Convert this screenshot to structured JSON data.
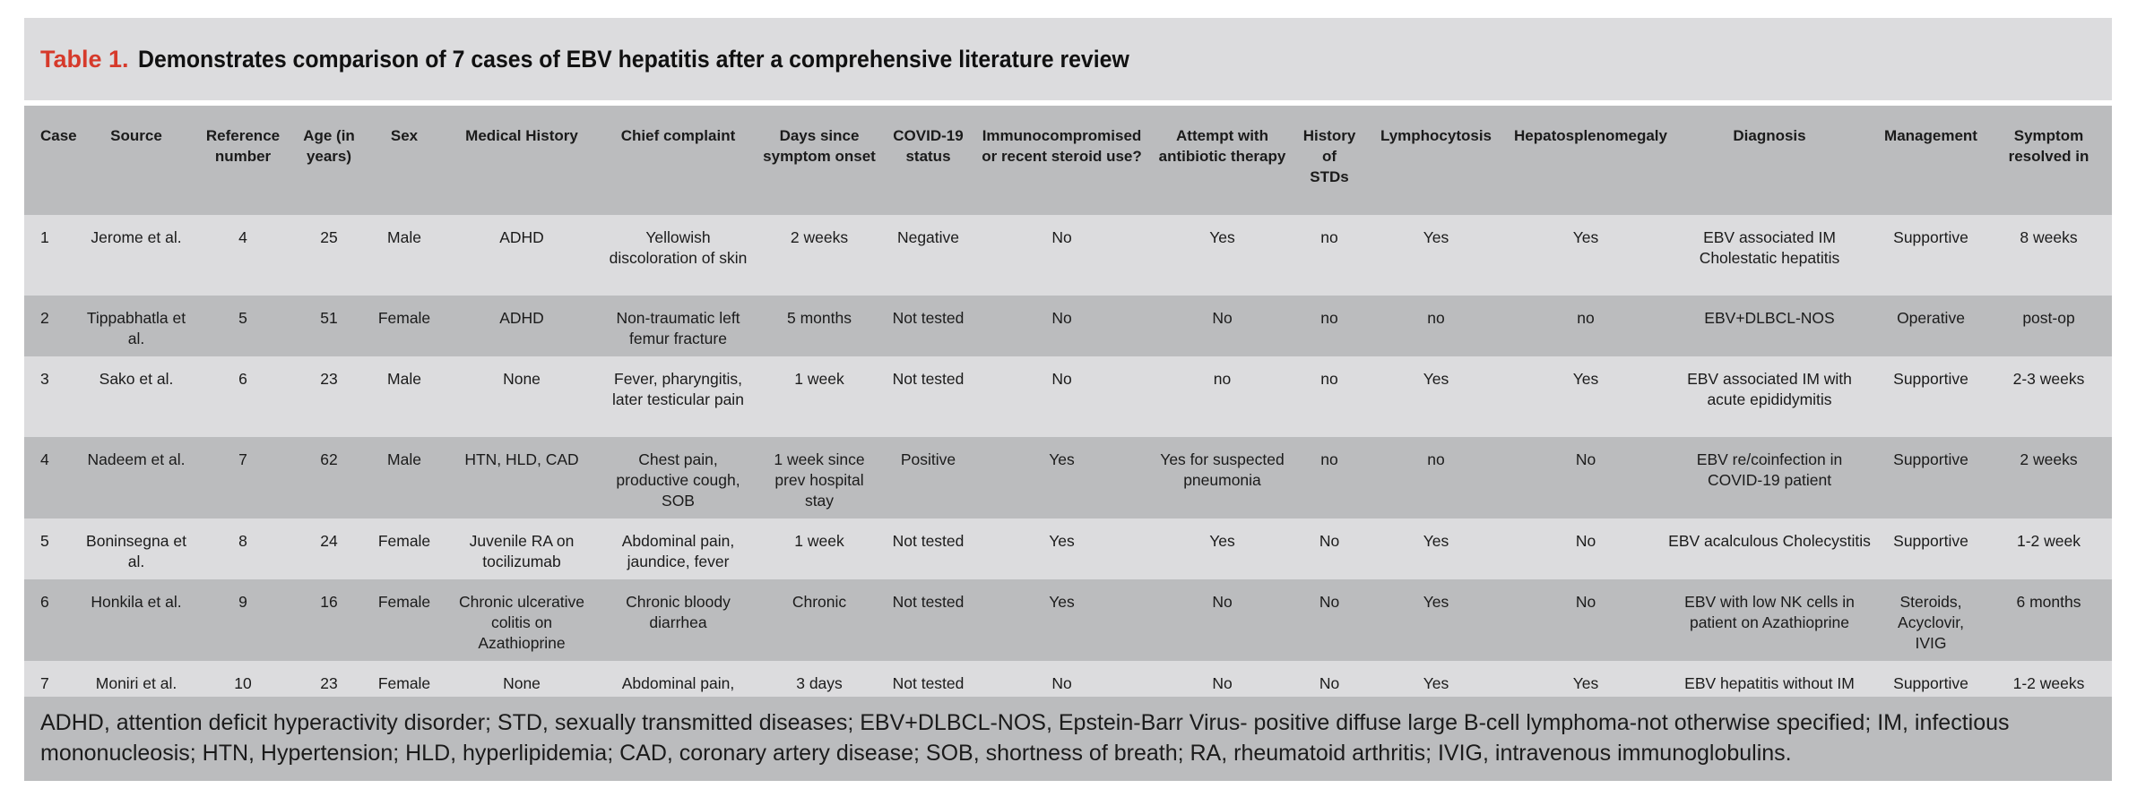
{
  "title": {
    "number": "Table 1.",
    "text": "Demonstrates comparison of 7 cases of EBV hepatitis after a comprehensive literature review"
  },
  "columns": [
    "Case",
    "Source",
    "Reference number",
    "Age (in years)",
    "Sex",
    "Medical History",
    "Chief complaint",
    "Days since symptom onset",
    "COVID-19 status",
    "Immunocompromised or recent steroid use?",
    "Attempt with antibiotic therapy",
    "History of STDs",
    "Lymphocytosis",
    "Hepatosplenomegaly",
    "Diagnosis",
    "Management",
    "Symptom resolved in"
  ],
  "rows": [
    [
      "1",
      "Jerome et al.",
      "4",
      "25",
      "Male",
      "ADHD",
      "Yellowish discoloration of skin",
      "2 weeks",
      "Negative",
      "No",
      "Yes",
      "no",
      "Yes",
      "Yes",
      "EBV associated IM Cholestatic hepatitis",
      "Supportive",
      "8 weeks"
    ],
    [
      "2",
      "Tippabhatla et al.",
      "5",
      "51",
      "Female",
      "ADHD",
      "Non-traumatic left femur fracture",
      "5 months",
      "Not tested",
      "No",
      "No",
      "no",
      "no",
      "no",
      "EBV+DLBCL-NOS",
      "Operative",
      "post-op"
    ],
    [
      "3",
      "Sako et al.",
      "6",
      "23",
      "Male",
      "None",
      "Fever, pharyngitis, later testicular pain",
      "1 week",
      "Not tested",
      "No",
      "no",
      "no",
      "Yes",
      "Yes",
      "EBV associated IM with acute epididymitis",
      "Supportive",
      "2-3 weeks"
    ],
    [
      "4",
      "Nadeem et al.",
      "7",
      "62",
      "Male",
      "HTN, HLD, CAD",
      "Chest pain, productive cough, SOB",
      "1 week since prev hospital stay",
      "Positive",
      "Yes",
      "Yes for suspected pneumonia",
      "no",
      "no",
      "No",
      "EBV re/coinfection in COVID-19 patient",
      "Supportive",
      "2 weeks"
    ],
    [
      "5",
      "Boninsegna et al.",
      "8",
      "24",
      "Female",
      "Juvenile RA on tocilizumab",
      "Abdominal pain, jaundice, fever",
      "1 week",
      "Not tested",
      "Yes",
      "Yes",
      "No",
      "Yes",
      "No",
      "EBV acalculous Cholecystitis",
      "Supportive",
      "1-2 week"
    ],
    [
      "6",
      "Honkila et al.",
      "9",
      "16",
      "Female",
      "Chronic ulcerative colitis on Azathioprine",
      "Chronic bloody diarrhea",
      "Chronic",
      "Not tested",
      "Yes",
      "No",
      "No",
      "Yes",
      "No",
      "EBV with low NK cells in patient on Azathioprine",
      "Steroids, Acyclovir, IVIG",
      "6 months"
    ],
    [
      "7",
      "Moniri et al.",
      "10",
      "23",
      "Female",
      "None",
      "Abdominal pain, jaundice, fever",
      "3 days",
      "Not tested",
      "No",
      "No",
      "No",
      "Yes",
      "Yes",
      "EBV hepatitis without IM syndrome",
      "Supportive",
      "1-2 weeks"
    ]
  ],
  "footnote": "ADHD, attention deficit hyperactivity disorder; STD, sexually transmitted diseases; EBV+DLBCL-NOS, Epstein-Barr Virus- positive diffuse large B-cell lymphoma-not otherwise specified; IM, infectious mononucleosis; HTN, Hypertension; HLD, hyperlipidemia; CAD, coronary artery disease; SOB, shortness of breath; RA, rheumatoid arthritis; IVIG, intravenous immunoglobulins."
}
